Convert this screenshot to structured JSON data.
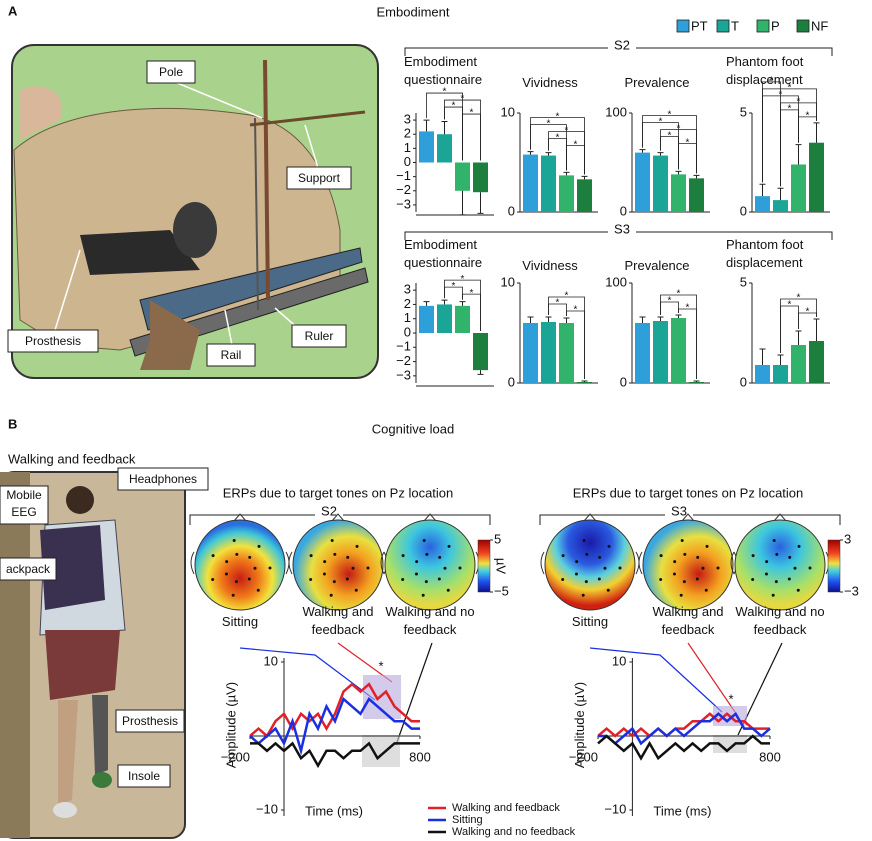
{
  "panel_labels": [
    "A",
    "B"
  ],
  "embodiment": {
    "title": "Embodiment",
    "rows": [
      "S2",
      "S3"
    ],
    "photo_labels": [
      "Pole",
      "Support",
      "Prosthesis",
      "Rail",
      "Ruler"
    ],
    "legend": [
      {
        "name": "PT",
        "color": "#2e9fd9"
      },
      {
        "name": "T",
        "color": "#1aa596"
      },
      {
        "name": "P",
        "color": "#31b36c"
      },
      {
        "name": "NF",
        "color": "#1d7f3d"
      }
    ]
  },
  "cognitive": {
    "title": "Cognitive load",
    "photo_title": "Walking and feedback",
    "photo_labels": [
      "Headphones",
      "Mobile EEG",
      "ackpack",
      "Prosthesis",
      "Insole"
    ]
  },
  "chart_data": [
    {
      "type": "bar",
      "title": "Embodiment questionnaire",
      "values": [
        2.2,
        2.0,
        -2.0,
        -2.1
      ],
      "errors": [
        0.8,
        0.9,
        1.7,
        1.5
      ],
      "ylim": [
        -3.5,
        3.5
      ],
      "yticks": [
        3,
        2,
        1,
        0,
        {
          "value": -1,
          "label": "−1"
        },
        {
          "value": -2,
          "label": "−2"
        },
        {
          "value": -3,
          "label": "−3"
        }
      ],
      "significance": [
        "*",
        "*",
        "*",
        "*"
      ]
    },
    {
      "type": "bar",
      "title": "Vividness",
      "values": [
        5.8,
        5.7,
        3.7,
        3.3
      ],
      "errors": [
        0.3,
        0.3,
        0.3,
        0.3
      ],
      "ylim": [
        0,
        10
      ],
      "yticks": [
        0,
        10
      ],
      "significance": [
        "*",
        "*",
        "*",
        "*",
        "*"
      ]
    },
    {
      "type": "bar",
      "title": "Prevalence",
      "values": [
        60,
        57,
        38,
        34
      ],
      "errors": [
        3,
        3,
        3,
        3
      ],
      "ylim": [
        0,
        100
      ],
      "yticks": [
        0,
        100
      ],
      "significance": [
        "*",
        "*",
        "*",
        "*",
        "*"
      ]
    },
    {
      "type": "bar",
      "title": "Phantom foot displacement",
      "values": [
        0.8,
        0.6,
        2.4,
        3.5
      ],
      "errors": [
        0.6,
        0.6,
        1.0,
        1.0
      ],
      "ylim": [
        0,
        5
      ],
      "yticks": [
        0,
        5
      ],
      "significance": [
        "*",
        "*",
        "*",
        "*",
        "*",
        "*"
      ]
    },
    {
      "type": "bar",
      "title": "Embodiment questionnaire",
      "values": [
        1.9,
        2.0,
        1.9,
        -2.6
      ],
      "errors": [
        0.3,
        0.3,
        0.3,
        0.3
      ],
      "ylim": [
        -3.5,
        3.5
      ],
      "yticks": [
        3,
        2,
        1,
        0,
        {
          "value": -1,
          "label": "−1"
        },
        {
          "value": -2,
          "label": "−2"
        },
        {
          "value": -3,
          "label": "−3"
        }
      ],
      "significance": [
        "*",
        "*",
        "*"
      ]
    },
    {
      "type": "bar",
      "title": "Vividness",
      "values": [
        6.0,
        6.1,
        6.0,
        0.1
      ],
      "errors": [
        0.6,
        0.5,
        0.5,
        0.1
      ],
      "ylim": [
        0,
        10
      ],
      "yticks": [
        0,
        10
      ],
      "significance": [
        "*",
        "*",
        "*"
      ]
    },
    {
      "type": "bar",
      "title": "Prevalence",
      "values": [
        60,
        62,
        65,
        1
      ],
      "errors": [
        6,
        4,
        3,
        1
      ],
      "ylim": [
        0,
        100
      ],
      "yticks": [
        0,
        100
      ],
      "significance": [
        "*",
        "*",
        "*"
      ]
    },
    {
      "type": "bar",
      "title": "Phantom foot displacement",
      "values": [
        0.9,
        0.9,
        1.9,
        2.1
      ],
      "errors": [
        0.8,
        0.5,
        0.7,
        1.1
      ],
      "ylim": [
        0,
        5
      ],
      "yticks": [
        0,
        5
      ],
      "significance": [
        "*",
        "*",
        "*"
      ]
    },
    {
      "type": "line",
      "title": "ERPs due to target tones on Pz location",
      "subtitle": "S2",
      "topomap_labels": [
        "Sitting",
        "Walking and feedback",
        "Walking and no feedback"
      ],
      "colorbar_ticks": [
        5,
        {
          "value": -5,
          "label": "−5"
        }
      ],
      "colorbar_label": "µV",
      "x": [
        -200,
        -150,
        -100,
        -50,
        0,
        50,
        100,
        150,
        200,
        250,
        300,
        350,
        400,
        450,
        500,
        550,
        600,
        650,
        700,
        750,
        800
      ],
      "series": [
        {
          "name": "Walking and feedback",
          "color": "#e3202a",
          "values": [
            0,
            1,
            0,
            2,
            3,
            1,
            3,
            2,
            3,
            1,
            3,
            6,
            7,
            6,
            7,
            5,
            6,
            4,
            3,
            2,
            2
          ]
        },
        {
          "name": "Sitting",
          "color": "#1a2fe0",
          "values": [
            0,
            -1,
            0,
            1,
            -1,
            2,
            -2,
            3,
            1,
            4,
            2,
            5,
            4,
            3,
            5,
            4,
            3,
            2,
            2,
            1,
            1
          ]
        },
        {
          "name": "Walking and no feedback",
          "color": "#111111",
          "values": [
            -1,
            -1,
            -2,
            -1,
            -2,
            -1,
            -3,
            -2,
            -4,
            -2,
            -2,
            -3,
            -2,
            -2,
            -1,
            -3,
            -2,
            -1,
            -1,
            -1,
            -1
          ]
        }
      ],
      "xlim": [
        -200,
        800
      ],
      "xticks": [
        {
          "value": -200,
          "label": "−200"
        },
        800
      ],
      "ylim": [
        -10,
        10
      ],
      "yticks": [
        {
          "value": -10,
          "label": "−10"
        },
        10
      ],
      "x_label": "Time (ms)",
      "y_label": "Amplitude (µV)",
      "annotation": "*",
      "legend": "bottom"
    },
    {
      "type": "line",
      "title": "ERPs due to target tones on Pz location",
      "subtitle": "S3",
      "topomap_labels": [
        "Sitting",
        "Walking and feedback",
        "Walking and no feedback"
      ],
      "colorbar_ticks": [
        3,
        {
          "value": -3,
          "label": "−3"
        }
      ],
      "x": [
        -200,
        -150,
        -100,
        -50,
        0,
        50,
        100,
        150,
        200,
        250,
        300,
        350,
        400,
        450,
        500,
        550,
        600,
        650,
        700,
        750,
        800
      ],
      "series": [
        {
          "color": "#e3202a",
          "values": [
            0,
            1,
            0,
            1,
            0,
            1,
            0,
            1,
            0,
            1,
            1,
            2,
            2,
            3,
            2,
            3,
            2,
            2,
            1,
            1,
            1
          ]
        },
        {
          "color": "#1a2fe0",
          "values": [
            0,
            0,
            -1,
            0,
            1,
            -1,
            0,
            1,
            0,
            1,
            0,
            1,
            2,
            2,
            3,
            2,
            3,
            1,
            1,
            0,
            1
          ]
        },
        {
          "color": "#111111",
          "values": [
            -1,
            0,
            -1,
            -2,
            -1,
            -3,
            -1,
            -3,
            -2,
            -1,
            -2,
            -1,
            -2,
            -1,
            -1,
            -2,
            -1,
            -1,
            0,
            -1,
            -1
          ]
        }
      ],
      "xlim": [
        -200,
        800
      ],
      "xticks": [
        {
          "value": -200,
          "label": "−200"
        },
        800
      ],
      "ylim": [
        -10,
        10
      ],
      "yticks": [
        {
          "value": -10,
          "label": "−10"
        },
        10
      ],
      "x_label": "Time (ms)",
      "y_label": "Amplitude (µV)",
      "annotation": "*"
    }
  ]
}
